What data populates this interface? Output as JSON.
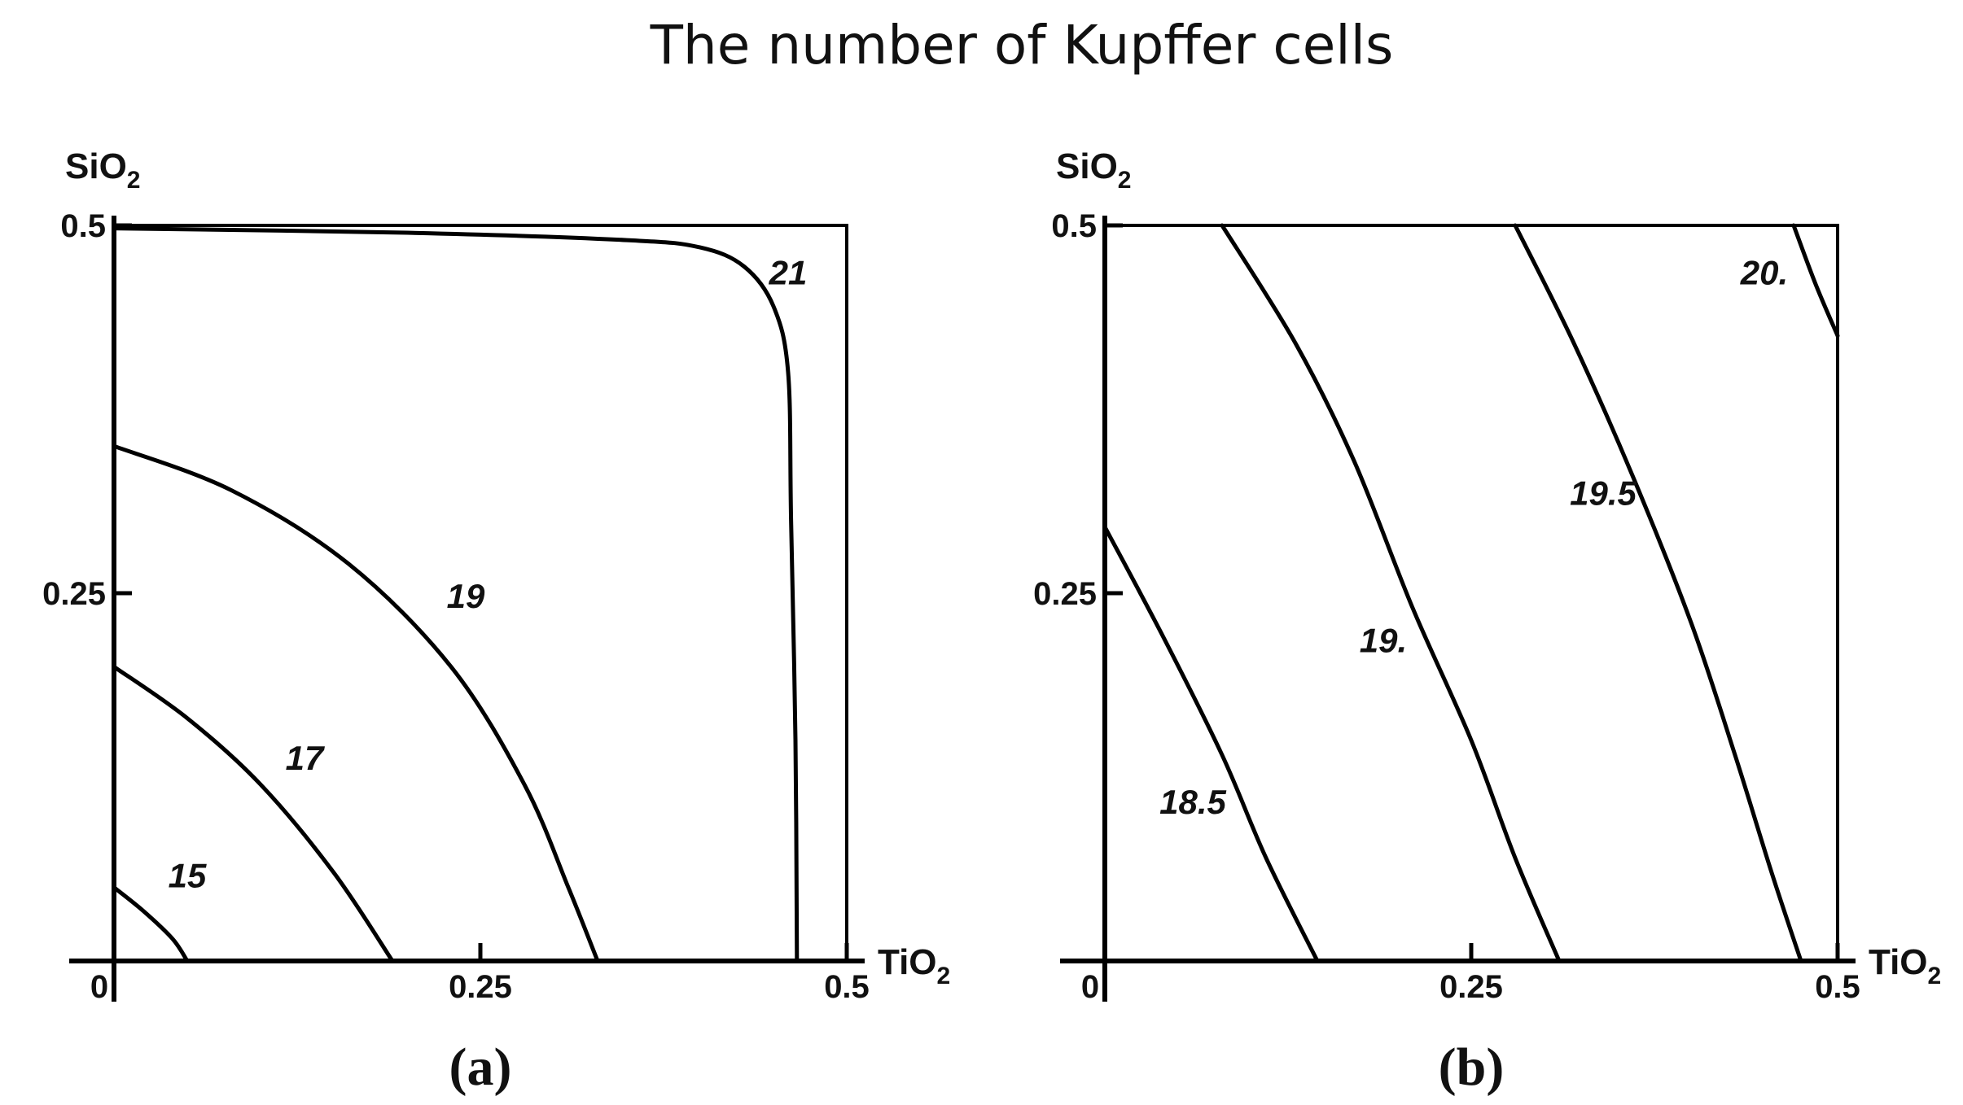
{
  "figure": {
    "title": "The number of Kupffer cells"
  },
  "chart_data": [
    {
      "type": "contour",
      "panel_label": "(a)",
      "xlabel": "TiO",
      "xlabel_sub": "2",
      "ylabel": "SiO",
      "ylabel_sub": "2",
      "xlim": [
        0,
        0.5
      ],
      "ylim": [
        0,
        0.5
      ],
      "x_ticks": [
        {
          "value": 0,
          "label": "0"
        },
        {
          "value": 0.25,
          "label": "0.25"
        },
        {
          "value": 0.5,
          "label": "0.5"
        }
      ],
      "y_ticks": [
        {
          "value": 0.25,
          "label": "0.25"
        },
        {
          "value": 0.5,
          "label": "0.5"
        }
      ],
      "contours": [
        {
          "level": "15",
          "points": [
            [
              0,
              0.05
            ],
            [
              0.02,
              0.034
            ],
            [
              0.04,
              0.015
            ],
            [
              0.05,
              0
            ]
          ]
        },
        {
          "level": "17",
          "points": [
            [
              0,
              0.2
            ],
            [
              0.05,
              0.165
            ],
            [
              0.1,
              0.12
            ],
            [
              0.15,
              0.06
            ],
            [
              0.19,
              0
            ]
          ]
        },
        {
          "level": "19",
          "points": [
            [
              0,
              0.35
            ],
            [
              0.08,
              0.32
            ],
            [
              0.16,
              0.27
            ],
            [
              0.23,
              0.2
            ],
            [
              0.28,
              0.12
            ],
            [
              0.31,
              0.05
            ],
            [
              0.33,
              0
            ]
          ]
        },
        {
          "level": "21",
          "points": [
            [
              0,
              0.498
            ],
            [
              0.2,
              0.495
            ],
            [
              0.35,
              0.49
            ],
            [
              0.4,
              0.485
            ],
            [
              0.43,
              0.472
            ],
            [
              0.45,
              0.445
            ],
            [
              0.46,
              0.4
            ],
            [
              0.462,
              0.3
            ],
            [
              0.465,
              0.15
            ],
            [
              0.466,
              0
            ]
          ]
        }
      ],
      "contour_label_positions": {
        "15": [
          0.05,
          0.05
        ],
        "17": [
          0.13,
          0.13
        ],
        "19": [
          0.24,
          0.24
        ],
        "21": [
          0.46,
          0.46
        ]
      }
    },
    {
      "type": "contour",
      "panel_label": "(b)",
      "xlabel": "TiO",
      "xlabel_sub": "2",
      "ylabel": "SiO",
      "ylabel_sub": "2",
      "xlim": [
        0,
        0.5
      ],
      "ylim": [
        0,
        0.5
      ],
      "x_ticks": [
        {
          "value": 0,
          "label": "0"
        },
        {
          "value": 0.25,
          "label": "0.25"
        },
        {
          "value": 0.5,
          "label": "0.5"
        }
      ],
      "y_ticks": [
        {
          "value": 0.25,
          "label": "0.25"
        },
        {
          "value": 0.5,
          "label": "0.5"
        }
      ],
      "contours": [
        {
          "level": "18.5",
          "points": [
            [
              0,
              0.295
            ],
            [
              0.04,
              0.22
            ],
            [
              0.08,
              0.14
            ],
            [
              0.11,
              0.07
            ],
            [
              0.145,
              0
            ]
          ]
        },
        {
          "level": "19.",
          "points": [
            [
              0.08,
              0.5
            ],
            [
              0.13,
              0.42
            ],
            [
              0.17,
              0.34
            ],
            [
              0.21,
              0.24
            ],
            [
              0.25,
              0.15
            ],
            [
              0.28,
              0.07
            ],
            [
              0.31,
              0
            ]
          ]
        },
        {
          "level": "19.5",
          "points": [
            [
              0.28,
              0.5
            ],
            [
              0.32,
              0.42
            ],
            [
              0.36,
              0.33
            ],
            [
              0.4,
              0.23
            ],
            [
              0.43,
              0.14
            ],
            [
              0.455,
              0.06
            ],
            [
              0.475,
              0
            ]
          ]
        },
        {
          "level": "20.",
          "points": [
            [
              0.47,
              0.5
            ],
            [
              0.485,
              0.46
            ],
            [
              0.5,
              0.425
            ]
          ]
        }
      ],
      "contour_label_positions": {
        "18.5": [
          0.06,
          0.1
        ],
        "19.": [
          0.19,
          0.21
        ],
        "19.5": [
          0.34,
          0.31
        ],
        "20.": [
          0.45,
          0.46
        ]
      }
    }
  ]
}
